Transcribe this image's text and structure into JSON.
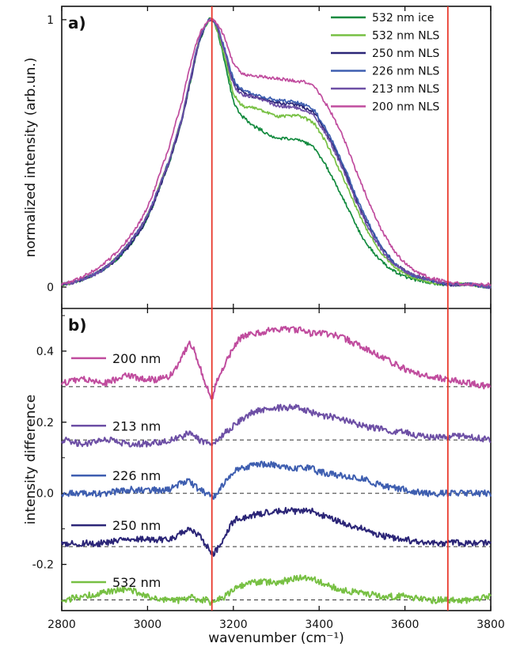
{
  "chart_data": [
    {
      "panel_label": "a)",
      "type": "line",
      "xlabel": "wavenumber (cm⁻¹)",
      "ylabel": "normalized intensity (arb.un.)",
      "xlim": [
        2800,
        3800
      ],
      "ylim": [
        -0.08,
        1.05
      ],
      "x_ticks": [
        2800,
        3000,
        3200,
        3400,
        3600,
        3800
      ],
      "y_ticks": [
        0,
        1
      ],
      "y_tick_labels": [
        "0",
        "1"
      ],
      "vertical_markers": [
        3150,
        3700
      ],
      "marker_color": "#e8382b",
      "legend_position": "top-right",
      "x": [
        2800,
        2850,
        2900,
        2950,
        3000,
        3050,
        3080,
        3100,
        3120,
        3140,
        3150,
        3160,
        3180,
        3200,
        3220,
        3250,
        3300,
        3350,
        3380,
        3400,
        3450,
        3500,
        3550,
        3600,
        3650,
        3700,
        3750,
        3800
      ],
      "series": [
        {
          "name": "532 nm ice",
          "color": "#128a3e",
          "values": [
            0.01,
            0.03,
            0.07,
            0.14,
            0.26,
            0.46,
            0.62,
            0.77,
            0.91,
            0.99,
            1.0,
            0.97,
            0.84,
            0.7,
            0.64,
            0.6,
            0.56,
            0.55,
            0.53,
            0.49,
            0.35,
            0.19,
            0.09,
            0.04,
            0.02,
            0.01,
            0.01,
            0.0
          ]
        },
        {
          "name": "532 nm NLS",
          "color": "#77c043",
          "values": [
            0.01,
            0.03,
            0.07,
            0.15,
            0.27,
            0.47,
            0.63,
            0.78,
            0.92,
            0.99,
            1.0,
            0.97,
            0.86,
            0.73,
            0.68,
            0.67,
            0.64,
            0.64,
            0.62,
            0.58,
            0.43,
            0.25,
            0.12,
            0.05,
            0.02,
            0.01,
            0.01,
            0.0
          ]
        },
        {
          "name": "250 nm NLS",
          "color": "#2b2577",
          "values": [
            0.01,
            0.03,
            0.07,
            0.14,
            0.26,
            0.46,
            0.62,
            0.77,
            0.91,
            0.99,
            1.0,
            0.98,
            0.88,
            0.77,
            0.73,
            0.71,
            0.69,
            0.68,
            0.66,
            0.62,
            0.47,
            0.28,
            0.14,
            0.06,
            0.03,
            0.01,
            0.01,
            0.0
          ]
        },
        {
          "name": "226 nm NLS",
          "color": "#3e5eb0",
          "values": [
            0.01,
            0.03,
            0.07,
            0.15,
            0.27,
            0.47,
            0.63,
            0.78,
            0.92,
            0.99,
            1.0,
            0.98,
            0.89,
            0.78,
            0.74,
            0.72,
            0.7,
            0.69,
            0.67,
            0.63,
            0.48,
            0.29,
            0.14,
            0.06,
            0.03,
            0.01,
            0.01,
            0.0
          ]
        },
        {
          "name": "213 nm NLS",
          "color": "#6d4fa5",
          "values": [
            0.01,
            0.03,
            0.07,
            0.15,
            0.27,
            0.47,
            0.63,
            0.78,
            0.92,
            0.99,
            1.0,
            0.98,
            0.88,
            0.76,
            0.72,
            0.71,
            0.68,
            0.67,
            0.65,
            0.61,
            0.46,
            0.27,
            0.13,
            0.06,
            0.03,
            0.01,
            0.01,
            0.0
          ]
        },
        {
          "name": "200 nm NLS",
          "color": "#c04c9e",
          "values": [
            0.01,
            0.04,
            0.09,
            0.17,
            0.3,
            0.52,
            0.69,
            0.83,
            0.94,
            0.99,
            1.0,
            0.99,
            0.93,
            0.84,
            0.8,
            0.79,
            0.78,
            0.77,
            0.76,
            0.72,
            0.58,
            0.38,
            0.2,
            0.09,
            0.04,
            0.02,
            0.01,
            0.01
          ]
        }
      ]
    },
    {
      "panel_label": "b)",
      "type": "line",
      "xlabel": "wavenumber (cm⁻¹)",
      "ylabel": "intensity difference",
      "xlim": [
        2800,
        3800
      ],
      "ylim": [
        -0.33,
        0.52
      ],
      "x_ticks": [
        2800,
        3000,
        3200,
        3400,
        3600,
        3800
      ],
      "x_tick_labels": [
        "2800",
        "3000",
        "3200",
        "3400",
        "3600",
        "3800"
      ],
      "y_ticks": [
        -0.2,
        0.0,
        0.2,
        0.4
      ],
      "y_tick_labels": [
        "-0.2",
        "0.0",
        "0.2",
        "0.4"
      ],
      "vertical_markers": [
        3150,
        3700
      ],
      "marker_color": "#e8382b",
      "baselines": [
        0.3,
        0.15,
        0.0,
        -0.15,
        -0.3
      ],
      "x": [
        2800,
        2850,
        2900,
        2950,
        3000,
        3050,
        3080,
        3100,
        3120,
        3140,
        3150,
        3160,
        3180,
        3200,
        3220,
        3250,
        3300,
        3350,
        3380,
        3400,
        3450,
        3500,
        3550,
        3600,
        3650,
        3700,
        3750,
        3800
      ],
      "series": [
        {
          "name": "200 nm",
          "color": "#c04c9e",
          "values": [
            0.31,
            0.32,
            0.31,
            0.33,
            0.32,
            0.33,
            0.38,
            0.42,
            0.36,
            0.3,
            0.27,
            0.31,
            0.36,
            0.41,
            0.44,
            0.45,
            0.46,
            0.46,
            0.45,
            0.45,
            0.44,
            0.41,
            0.38,
            0.35,
            0.33,
            0.32,
            0.31,
            0.3
          ]
        },
        {
          "name": "213 nm",
          "color": "#6d4fa5",
          "values": [
            0.15,
            0.14,
            0.15,
            0.14,
            0.14,
            0.15,
            0.16,
            0.17,
            0.15,
            0.14,
            0.14,
            0.15,
            0.17,
            0.19,
            0.21,
            0.23,
            0.24,
            0.24,
            0.23,
            0.22,
            0.21,
            0.19,
            0.18,
            0.17,
            0.16,
            0.16,
            0.16,
            0.15
          ]
        },
        {
          "name": "226 nm",
          "color": "#3e5eb0",
          "values": [
            0.0,
            0.0,
            0.0,
            0.01,
            0.01,
            0.01,
            0.03,
            0.03,
            0.01,
            0.0,
            -0.01,
            0.0,
            0.03,
            0.06,
            0.07,
            0.08,
            0.08,
            0.07,
            0.07,
            0.06,
            0.05,
            0.04,
            0.02,
            0.01,
            0.0,
            0.0,
            0.0,
            0.0
          ]
        },
        {
          "name": "250 nm",
          "color": "#2b2577",
          "values": [
            -0.14,
            -0.14,
            -0.14,
            -0.13,
            -0.13,
            -0.13,
            -0.11,
            -0.1,
            -0.12,
            -0.15,
            -0.17,
            -0.16,
            -0.12,
            -0.08,
            -0.07,
            -0.06,
            -0.05,
            -0.05,
            -0.05,
            -0.06,
            -0.08,
            -0.1,
            -0.12,
            -0.13,
            -0.14,
            -0.14,
            -0.14,
            -0.14
          ]
        },
        {
          "name": "532 nm",
          "color": "#77c043",
          "values": [
            -0.3,
            -0.29,
            -0.28,
            -0.27,
            -0.29,
            -0.3,
            -0.3,
            -0.29,
            -0.3,
            -0.3,
            -0.31,
            -0.3,
            -0.29,
            -0.27,
            -0.26,
            -0.25,
            -0.25,
            -0.24,
            -0.24,
            -0.25,
            -0.27,
            -0.28,
            -0.29,
            -0.29,
            -0.3,
            -0.3,
            -0.3,
            -0.29
          ]
        }
      ]
    }
  ]
}
